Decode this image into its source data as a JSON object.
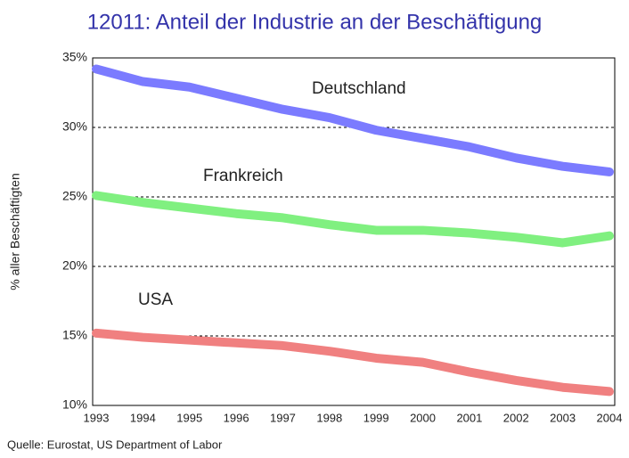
{
  "chart_data": {
    "type": "line",
    "title": "12011: Anteil der Industrie an der Beschäftigung",
    "y_label": "% aller Beschäftigten",
    "source": "Quelle: Eurostat, US Department of Labor",
    "x": [
      1993,
      1994,
      1995,
      1996,
      1997,
      1998,
      1999,
      2000,
      2001,
      2002,
      2003,
      2004
    ],
    "series": [
      {
        "name": "Deutschland",
        "color": "#7b7bff",
        "values": [
          34.2,
          33.3,
          32.9,
          32.1,
          31.3,
          30.7,
          29.8,
          29.2,
          28.6,
          27.8,
          27.2,
          26.8
        ]
      },
      {
        "name": "Frankreich",
        "color": "#80f080",
        "values": [
          25.1,
          24.6,
          24.2,
          23.8,
          23.5,
          23.0,
          22.6,
          22.6,
          22.4,
          22.1,
          21.7,
          22.2
        ]
      },
      {
        "name": "USA",
        "color": "#f08080",
        "values": [
          15.2,
          14.9,
          14.7,
          14.5,
          14.3,
          13.9,
          13.4,
          13.1,
          12.4,
          11.8,
          11.3,
          11.0
        ]
      }
    ],
    "xlim": [
      1993,
      2004
    ],
    "xticks": [
      1993,
      1994,
      1995,
      1996,
      1997,
      1998,
      1999,
      2000,
      2001,
      2002,
      2003,
      2004
    ],
    "ylim": [
      10,
      35
    ],
    "yticks": [
      {
        "value": 10,
        "label": "10%"
      },
      {
        "value": 15,
        "label": "15%"
      },
      {
        "value": 20,
        "label": "20%"
      },
      {
        "value": 25,
        "label": "25%"
      },
      {
        "value": 30,
        "label": "30%"
      },
      {
        "value": 35,
        "label": "35%"
      }
    ],
    "grid": true
  }
}
